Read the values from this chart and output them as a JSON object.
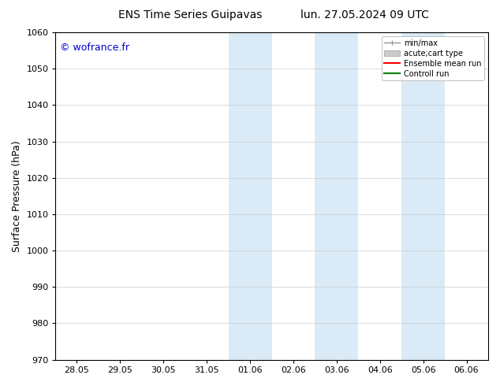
{
  "title_left": "ENS Time Series Guipavas",
  "title_right": "lun. 27.05.2024 09 UTC",
  "ylabel": "Surface Pressure (hPa)",
  "ylim": [
    970,
    1060
  ],
  "yticks": [
    970,
    980,
    990,
    1000,
    1010,
    1020,
    1030,
    1040,
    1050,
    1060
  ],
  "xlabel_ticks": [
    "28.05",
    "29.05",
    "30.05",
    "31.05",
    "01.06",
    "02.06",
    "03.06",
    "04.06",
    "05.06",
    "06.06"
  ],
  "x_positions": [
    0,
    1,
    2,
    3,
    4,
    5,
    6,
    7,
    8,
    9
  ],
  "watermark": "© wofrance.fr",
  "watermark_color": "#0000cc",
  "background_color": "#ffffff",
  "plot_bg_color": "#ffffff",
  "shaded_regions": [
    {
      "xstart": 3.5,
      "xend": 4.5,
      "color": "#daeaf6"
    },
    {
      "xstart": 5.5,
      "xend": 6.5,
      "color": "#daeaf6"
    },
    {
      "xstart": 7.5,
      "xend": 8.5,
      "color": "#daeaf6"
    }
  ],
  "legend_entries": [
    {
      "label": "min/max",
      "type": "minmax"
    },
    {
      "label": "acute;cart type",
      "type": "band"
    },
    {
      "label": "Ensemble mean run",
      "color": "#ff0000",
      "type": "line"
    },
    {
      "label": "Controll run",
      "color": "#008000",
      "type": "line"
    }
  ],
  "grid_color": "#cccccc",
  "title_fontsize": 10,
  "axis_label_fontsize": 9,
  "tick_fontsize": 8,
  "legend_fontsize": 7,
  "watermark_fontsize": 9
}
